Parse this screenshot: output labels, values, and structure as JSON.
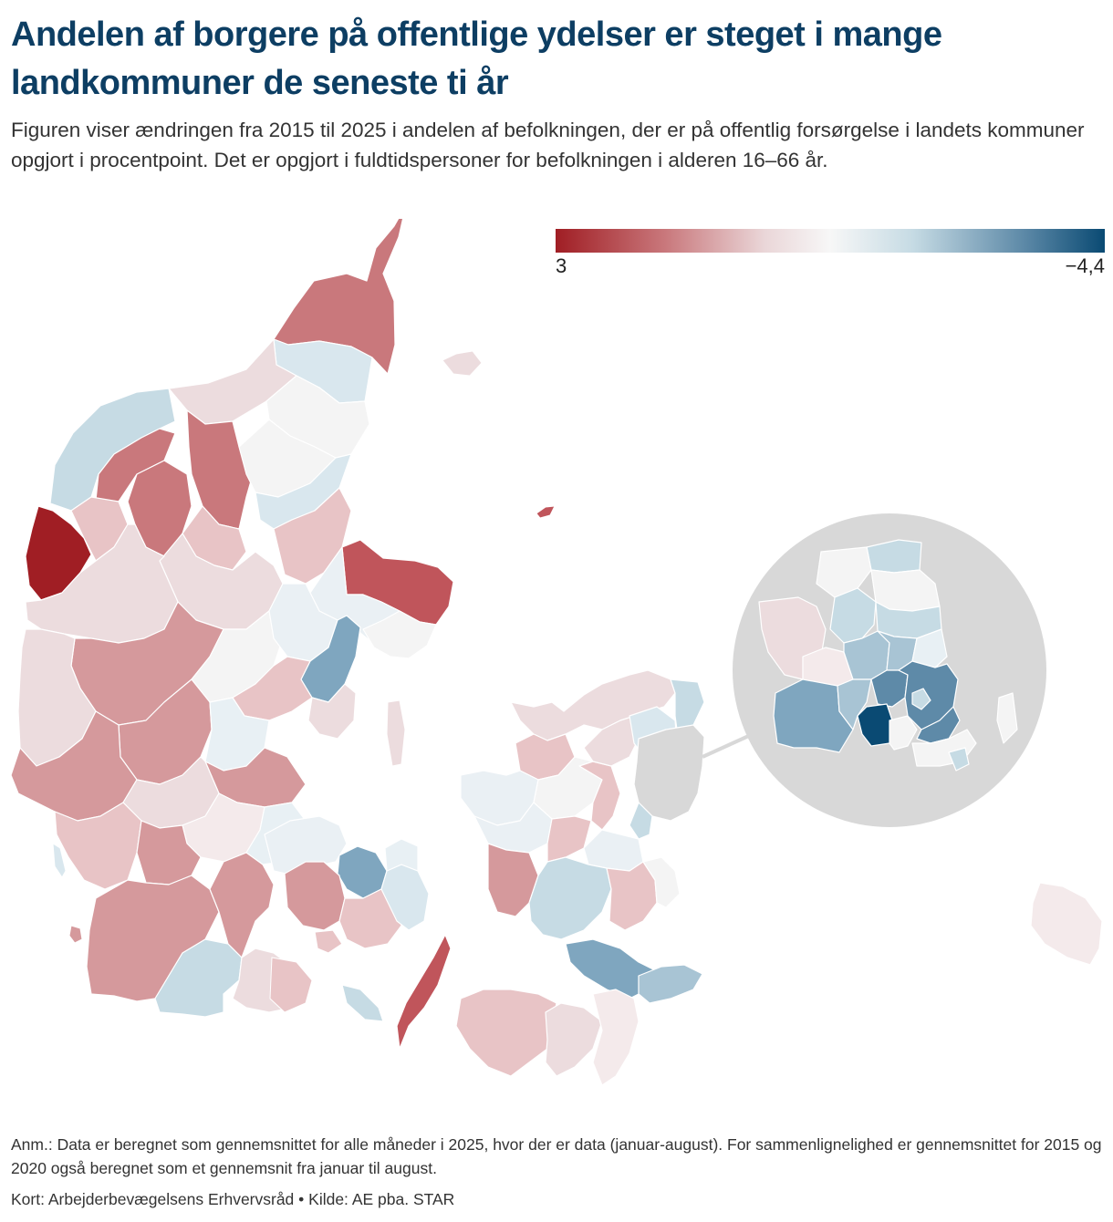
{
  "header": {
    "title": "Andelen af borgere på offentlige ydelser er steget i mange landkommuner de seneste ti år",
    "subtitle": "Figuren viser ændringen fra 2015 til 2025 i andelen af befolkningen, der er på offentlig forsørgelse i landets kommuner opgjort i procentpoint. Det er opgjort i fuldtidspersoner for befolkningen i alderen 16–66 år."
  },
  "legend": {
    "min_label": "3",
    "max_label": "−4,4",
    "colors": [
      "#a01e24",
      "#c9787c",
      "#ead6d8",
      "#f7f7f7",
      "#c6dbe4",
      "#5e8aa8",
      "#0a4a73"
    ]
  },
  "map": {
    "inset": "Københavnsområdet (forstørret)"
  },
  "footer": {
    "note": "Anm.: Data er beregnet som gennemsnittet for alle måneder i 2025, hvor der er data (januar-august). For sammenlignelighed er gennemsnittet for 2015 og 2020 også beregnet som et gennemsnit fra januar til august.",
    "source": "Kort: Arbejderbevægelsens Erhvervsråd • Kilde: AE pba. STAR"
  }
}
